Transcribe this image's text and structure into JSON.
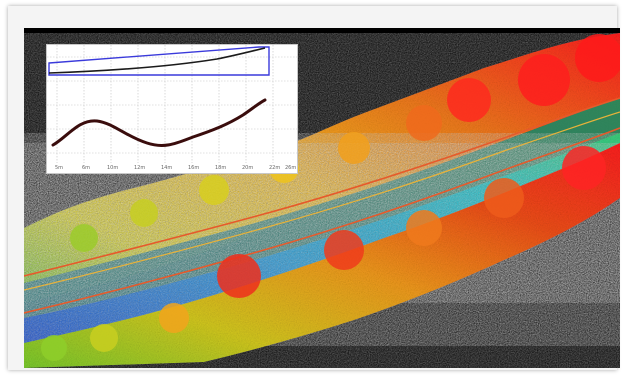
{
  "image": {
    "description_colors": {
      "background": "#000000",
      "high": "#ff1a1a",
      "mid_high": "#ff7a1a",
      "mid": "#f5c21a",
      "mid_low": "#7ad42b",
      "low": "#27c6d6",
      "ground": "#1d4fc7",
      "route_line": "#e25b2c"
    }
  },
  "inset": {
    "tick_labels": [
      "5m",
      "6m",
      "10m",
      "12m",
      "14m",
      "16m",
      "18m",
      "20m",
      "22m",
      "26m"
    ],
    "colors": {
      "outline": "#3a3adb",
      "profile": "#2b0f0f",
      "grid": "#b9b9b9"
    }
  }
}
